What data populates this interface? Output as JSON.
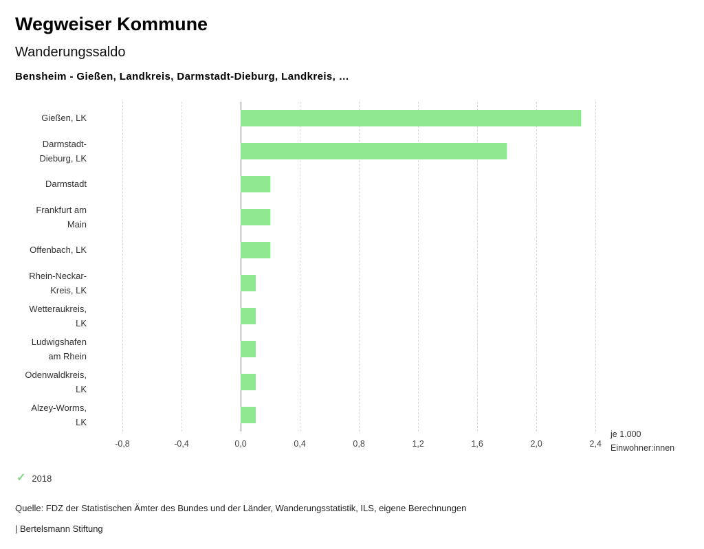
{
  "header": {
    "title": "Wegweiser Kommune",
    "subtitle": "Wanderungssaldo",
    "selection": "Bensheim - Gießen, Landkreis, Darmstadt-Dieburg, Landkreis, …"
  },
  "chart_data": {
    "type": "bar",
    "orientation": "horizontal",
    "title": "Wanderungssaldo",
    "categories": [
      "Gießen, LK",
      "Darmstadt-Dieburg, LK",
      "Darmstadt",
      "Frankfurt am Main",
      "Offenbach, LK",
      "Rhein-Neckar-Kreis, LK",
      "Wetteraukreis, LK",
      "Ludwigshafen am Rhein",
      "Odenwaldkreis, LK",
      "Alzey-Worms, LK"
    ],
    "category_lines": [
      [
        "Gießen, LK"
      ],
      [
        "Darmstadt-",
        "Dieburg, LK"
      ],
      [
        "Darmstadt"
      ],
      [
        "Frankfurt am",
        "Main"
      ],
      [
        "Offenbach, LK"
      ],
      [
        "Rhein-Neckar-",
        "Kreis, LK"
      ],
      [
        "Wetteraukreis,",
        "LK"
      ],
      [
        "Ludwigshafen",
        "am Rhein"
      ],
      [
        "Odenwaldkreis,",
        "LK"
      ],
      [
        "Alzey-Worms,",
        "LK"
      ]
    ],
    "series": [
      {
        "name": "2018",
        "values": [
          2.3,
          1.8,
          0.2,
          0.2,
          0.2,
          0.1,
          0.1,
          0.1,
          0.1,
          0.1
        ]
      }
    ],
    "xlim": [
      -1.0,
      2.45
    ],
    "xticks": [
      -0.8,
      -0.4,
      0.0,
      0.4,
      0.8,
      1.2,
      1.6,
      2.0,
      2.4
    ],
    "xtick_labels": [
      "-0,8",
      "-0,4",
      "0,0",
      "0,4",
      "0,8",
      "1,2",
      "1,6",
      "2,0",
      "2,4"
    ],
    "unit_label_lines": [
      "je 1.000",
      "Einwohner:innen"
    ],
    "bar_color": "#8fe78f",
    "grid": "dashed-vertical",
    "legend_position": "bottom-left"
  },
  "legend": {
    "check_icon": "check",
    "check_glyph": "✓",
    "year": "2018",
    "check_color": "#7ed87e"
  },
  "footer": {
    "source": "Quelle: FDZ der Statistischen Ämter des Bundes und der Länder, Wanderungsstatistik, ILS, eigene Berechnungen",
    "brand": "| Bertelsmann Stiftung"
  }
}
